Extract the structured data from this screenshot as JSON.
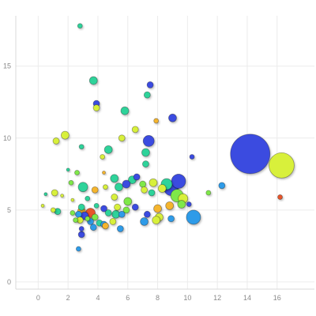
{
  "chart_data": {
    "type": "scatter",
    "variant": "bubble",
    "title": "",
    "xlabel": "",
    "ylabel": "",
    "xlim": [
      -1.5,
      18.5
    ],
    "ylim": [
      -0.5,
      18.5
    ],
    "x_ticks": [
      0,
      2,
      4,
      6,
      8,
      10,
      12,
      14,
      16
    ],
    "y_ticks": [
      0,
      5,
      10,
      15
    ],
    "grid": true,
    "legend": "none",
    "colors": {
      "blue": "#3b4be0",
      "skyblue": "#2e9be8",
      "teal": "#2ed39a",
      "green": "#7fe84a",
      "yellow": "#d8f03a",
      "orange": "#f5b52e",
      "red": "#e8542a"
    },
    "points": [
      {
        "x": 2.8,
        "y": 17.8,
        "size": 3,
        "color": "teal"
      },
      {
        "x": 3.7,
        "y": 14.0,
        "size": 5,
        "color": "teal"
      },
      {
        "x": 7.5,
        "y": 13.7,
        "size": 4,
        "color": "blue"
      },
      {
        "x": 7.3,
        "y": 13.0,
        "size": 4,
        "color": "teal"
      },
      {
        "x": 3.9,
        "y": 12.4,
        "size": 4,
        "color": "blue"
      },
      {
        "x": 3.9,
        "y": 12.1,
        "size": 4,
        "color": "yellow"
      },
      {
        "x": 5.8,
        "y": 11.9,
        "size": 5,
        "color": "teal"
      },
      {
        "x": 9.0,
        "y": 11.4,
        "size": 5,
        "color": "blue"
      },
      {
        "x": 7.9,
        "y": 11.2,
        "size": 3,
        "color": "orange"
      },
      {
        "x": 6.5,
        "y": 10.6,
        "size": 4,
        "color": "yellow"
      },
      {
        "x": 1.8,
        "y": 10.2,
        "size": 5,
        "color": "yellow"
      },
      {
        "x": 1.2,
        "y": 9.8,
        "size": 4,
        "color": "yellow"
      },
      {
        "x": 7.4,
        "y": 9.8,
        "size": 7,
        "color": "blue"
      },
      {
        "x": 5.6,
        "y": 10.0,
        "size": 4,
        "color": "yellow"
      },
      {
        "x": 2.9,
        "y": 9.4,
        "size": 3,
        "color": "teal"
      },
      {
        "x": 4.7,
        "y": 9.2,
        "size": 5,
        "color": "teal"
      },
      {
        "x": 7.2,
        "y": 9.0,
        "size": 5,
        "color": "teal"
      },
      {
        "x": 4.3,
        "y": 8.7,
        "size": 3,
        "color": "yellow"
      },
      {
        "x": 10.3,
        "y": 8.7,
        "size": 3,
        "color": "blue"
      },
      {
        "x": 14.2,
        "y": 8.9,
        "size": 25,
        "color": "blue"
      },
      {
        "x": 16.3,
        "y": 8.1,
        "size": 16,
        "color": "yellow"
      },
      {
        "x": 7.2,
        "y": 8.2,
        "size": 4,
        "color": "teal"
      },
      {
        "x": 2.0,
        "y": 7.8,
        "size": 2,
        "color": "teal"
      },
      {
        "x": 2.6,
        "y": 7.6,
        "size": 3,
        "color": "green"
      },
      {
        "x": 4.4,
        "y": 7.6,
        "size": 2,
        "color": "orange"
      },
      {
        "x": 5.1,
        "y": 7.2,
        "size": 5,
        "color": "teal"
      },
      {
        "x": 6.6,
        "y": 7.3,
        "size": 4,
        "color": "blue"
      },
      {
        "x": 6.3,
        "y": 7.1,
        "size": 5,
        "color": "teal"
      },
      {
        "x": 7.0,
        "y": 6.8,
        "size": 4,
        "color": "green"
      },
      {
        "x": 7.7,
        "y": 6.9,
        "size": 5,
        "color": "yellow"
      },
      {
        "x": 8.6,
        "y": 6.8,
        "size": 7,
        "color": "teal"
      },
      {
        "x": 8.9,
        "y": 6.5,
        "size": 9,
        "color": "blue"
      },
      {
        "x": 9.4,
        "y": 7.0,
        "size": 9,
        "color": "blue"
      },
      {
        "x": 2.2,
        "y": 6.9,
        "size": 3,
        "color": "green"
      },
      {
        "x": 3.0,
        "y": 6.6,
        "size": 6,
        "color": "teal"
      },
      {
        "x": 3.8,
        "y": 6.4,
        "size": 4,
        "color": "orange"
      },
      {
        "x": 4.5,
        "y": 6.6,
        "size": 3,
        "color": "yellow"
      },
      {
        "x": 5.4,
        "y": 6.6,
        "size": 5,
        "color": "teal"
      },
      {
        "x": 5.9,
        "y": 6.8,
        "size": 5,
        "color": "blue"
      },
      {
        "x": 7.1,
        "y": 6.4,
        "size": 4,
        "color": "yellow"
      },
      {
        "x": 7.6,
        "y": 6.2,
        "size": 4,
        "color": "teal"
      },
      {
        "x": 8.3,
        "y": 6.5,
        "size": 5,
        "color": "yellow"
      },
      {
        "x": 9.3,
        "y": 6.0,
        "size": 8,
        "color": "green"
      },
      {
        "x": 9.7,
        "y": 5.8,
        "size": 6,
        "color": "yellow"
      },
      {
        "x": 12.3,
        "y": 6.7,
        "size": 4,
        "color": "skyblue"
      },
      {
        "x": 11.4,
        "y": 6.2,
        "size": 3,
        "color": "green"
      },
      {
        "x": 16.2,
        "y": 5.9,
        "size": 3,
        "color": "red"
      },
      {
        "x": 0.5,
        "y": 6.1,
        "size": 2,
        "color": "teal"
      },
      {
        "x": 1.1,
        "y": 6.2,
        "size": 4,
        "color": "yellow"
      },
      {
        "x": 1.6,
        "y": 6.0,
        "size": 2,
        "color": "yellow"
      },
      {
        "x": 2.3,
        "y": 5.7,
        "size": 2,
        "color": "yellow"
      },
      {
        "x": 3.3,
        "y": 5.8,
        "size": 3,
        "color": "teal"
      },
      {
        "x": 5.1,
        "y": 5.9,
        "size": 4,
        "color": "yellow"
      },
      {
        "x": 6.0,
        "y": 5.6,
        "size": 5,
        "color": "green"
      },
      {
        "x": 2.9,
        "y": 5.2,
        "size": 4,
        "color": "teal"
      },
      {
        "x": 3.9,
        "y": 5.3,
        "size": 3,
        "color": "teal"
      },
      {
        "x": 4.4,
        "y": 5.1,
        "size": 4,
        "color": "blue"
      },
      {
        "x": 5.3,
        "y": 5.2,
        "size": 4,
        "color": "yellow"
      },
      {
        "x": 5.9,
        "y": 5.0,
        "size": 4,
        "color": "green"
      },
      {
        "x": 6.5,
        "y": 5.2,
        "size": 4,
        "color": "blue"
      },
      {
        "x": 8.0,
        "y": 5.1,
        "size": 5,
        "color": "orange"
      },
      {
        "x": 8.8,
        "y": 5.3,
        "size": 5,
        "color": "orange"
      },
      {
        "x": 9.6,
        "y": 5.4,
        "size": 5,
        "color": "green"
      },
      {
        "x": 10.1,
        "y": 5.4,
        "size": 3,
        "color": "blue"
      },
      {
        "x": 0.3,
        "y": 5.3,
        "size": 2,
        "color": "yellow"
      },
      {
        "x": 1.0,
        "y": 5.0,
        "size": 3,
        "color": "yellow"
      },
      {
        "x": 1.3,
        "y": 4.9,
        "size": 4,
        "color": "teal"
      },
      {
        "x": 2.3,
        "y": 4.8,
        "size": 3,
        "color": "green"
      },
      {
        "x": 2.7,
        "y": 4.7,
        "size": 4,
        "color": "skyblue"
      },
      {
        "x": 2.9,
        "y": 4.9,
        "size": 5,
        "color": "orange"
      },
      {
        "x": 3.1,
        "y": 4.6,
        "size": 5,
        "color": "blue"
      },
      {
        "x": 3.5,
        "y": 4.8,
        "size": 6,
        "color": "red"
      },
      {
        "x": 3.8,
        "y": 4.5,
        "size": 4,
        "color": "green"
      },
      {
        "x": 4.7,
        "y": 4.8,
        "size": 4,
        "color": "teal"
      },
      {
        "x": 5.2,
        "y": 4.7,
        "size": 5,
        "color": "teal"
      },
      {
        "x": 5.6,
        "y": 4.7,
        "size": 4,
        "color": "skyblue"
      },
      {
        "x": 7.3,
        "y": 4.7,
        "size": 4,
        "color": "blue"
      },
      {
        "x": 8.1,
        "y": 4.5,
        "size": 5,
        "color": "yellow"
      },
      {
        "x": 8.9,
        "y": 4.4,
        "size": 4,
        "color": "skyblue"
      },
      {
        "x": 10.4,
        "y": 4.5,
        "size": 9,
        "color": "skyblue"
      },
      {
        "x": 2.5,
        "y": 4.3,
        "size": 3,
        "color": "green"
      },
      {
        "x": 2.8,
        "y": 4.3,
        "size": 4,
        "color": "yellow"
      },
      {
        "x": 3.3,
        "y": 4.4,
        "size": 3,
        "color": "green"
      },
      {
        "x": 3.5,
        "y": 4.2,
        "size": 4,
        "color": "skyblue"
      },
      {
        "x": 4.1,
        "y": 4.1,
        "size": 4,
        "color": "teal"
      },
      {
        "x": 4.4,
        "y": 4.0,
        "size": 4,
        "color": "skyblue"
      },
      {
        "x": 4.5,
        "y": 3.9,
        "size": 4,
        "color": "orange"
      },
      {
        "x": 5.0,
        "y": 4.2,
        "size": 4,
        "color": "yellow"
      },
      {
        "x": 7.1,
        "y": 4.2,
        "size": 5,
        "color": "skyblue"
      },
      {
        "x": 7.9,
        "y": 4.3,
        "size": 5,
        "color": "yellow"
      },
      {
        "x": 2.9,
        "y": 3.7,
        "size": 3,
        "color": "blue"
      },
      {
        "x": 3.7,
        "y": 3.8,
        "size": 4,
        "color": "skyblue"
      },
      {
        "x": 5.5,
        "y": 3.7,
        "size": 4,
        "color": "skyblue"
      },
      {
        "x": 2.9,
        "y": 3.3,
        "size": 4,
        "color": "blue"
      },
      {
        "x": 2.7,
        "y": 2.3,
        "size": 3,
        "color": "skyblue"
      }
    ]
  }
}
